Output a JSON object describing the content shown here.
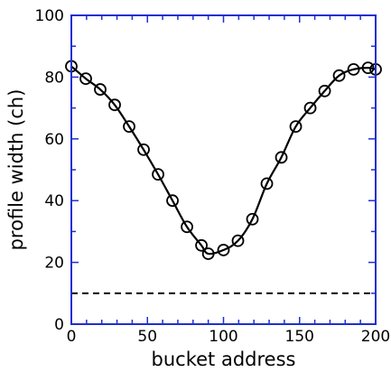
{
  "chart_data": {
    "type": "line",
    "xlabel": "bucket address",
    "ylabel": "profile width (ch)",
    "xlim": [
      0,
      200
    ],
    "ylim": [
      0,
      100
    ],
    "xticks": [
      0,
      50,
      100,
      150,
      200
    ],
    "yticks": [
      0,
      20,
      40,
      60,
      80,
      100
    ],
    "grid": false,
    "frame_color": "#1f2fd0",
    "series": [
      {
        "style": "solid-with-circle-markers",
        "color": "#000000",
        "x": [
          0,
          9.5,
          19,
          28.5,
          38,
          47.5,
          57,
          66.5,
          76,
          85.5,
          90,
          100,
          109.5,
          119,
          128.5,
          138,
          147.5,
          157,
          166.5,
          176,
          185.5,
          195,
          200
        ],
        "y": [
          83.5,
          79.5,
          76,
          71,
          64,
          56.5,
          48.5,
          40,
          31.5,
          25.5,
          22.8,
          24,
          27,
          34,
          45.5,
          54,
          64,
          70,
          75.5,
          80.5,
          82.5,
          83,
          82.5
        ]
      },
      {
        "style": "dashed",
        "color": "#000000",
        "x": [
          0,
          200
        ],
        "y": [
          10,
          10
        ]
      }
    ]
  }
}
